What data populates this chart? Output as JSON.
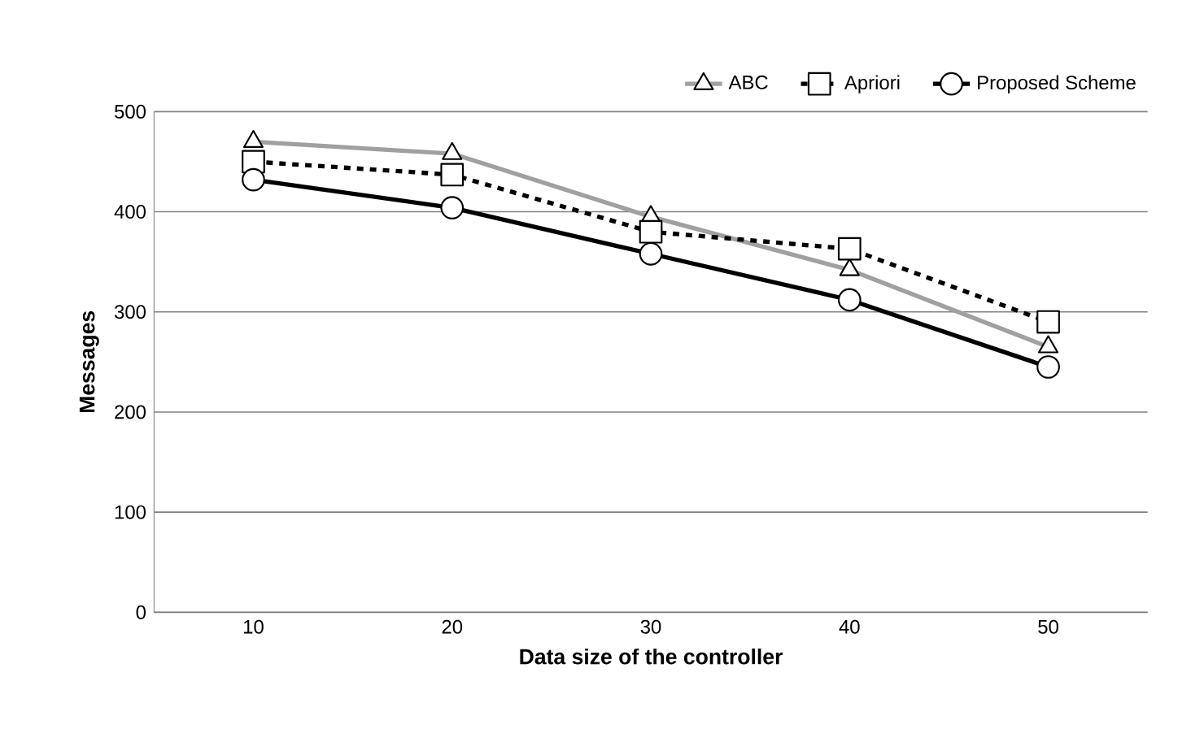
{
  "chart_data": {
    "type": "line",
    "xlabel": "Data size of the controller",
    "ylabel": "Messages",
    "categories": [
      "10",
      "20",
      "30",
      "40",
      "50"
    ],
    "series": [
      {
        "name": "ABC",
        "color": "#a0a0a0",
        "marker": "triangle",
        "line_style": "solid",
        "values": [
          470,
          458,
          395,
          342,
          265
        ]
      },
      {
        "name": "Apriori",
        "color": "#000000",
        "marker": "square",
        "line_style": "dashed",
        "values": [
          450,
          437,
          380,
          363,
          290
        ]
      },
      {
        "name": "Proposed Scheme",
        "color": "#000000",
        "marker": "circle",
        "line_style": "solid",
        "values": [
          432,
          404,
          358,
          312,
          245
        ]
      }
    ],
    "ylim": [
      0,
      500
    ],
    "yticks": [
      0,
      100,
      200,
      300,
      400,
      500
    ],
    "grid": "y",
    "legend": "top right"
  }
}
